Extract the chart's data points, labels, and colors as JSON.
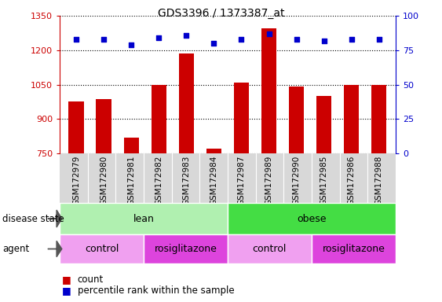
{
  "title": "GDS3396 / 1373387_at",
  "samples": [
    "GSM172979",
    "GSM172980",
    "GSM172981",
    "GSM172982",
    "GSM172983",
    "GSM172984",
    "GSM172987",
    "GSM172989",
    "GSM172990",
    "GSM172985",
    "GSM172986",
    "GSM172988"
  ],
  "counts": [
    975,
    985,
    820,
    1048,
    1185,
    770,
    1060,
    1295,
    1040,
    1000,
    1048,
    1048
  ],
  "percentile_ranks": [
    83,
    83,
    79,
    84,
    86,
    80,
    83,
    87,
    83,
    82,
    83,
    83
  ],
  "ylim_left": [
    750,
    1350
  ],
  "ylim_right": [
    0,
    100
  ],
  "yticks_left": [
    750,
    900,
    1050,
    1200,
    1350
  ],
  "yticks_right": [
    0,
    25,
    50,
    75,
    100
  ],
  "bar_color": "#cc0000",
  "dot_color": "#0000cc",
  "disease_state_groups": [
    {
      "label": "lean",
      "start": 0,
      "end": 6,
      "color": "#b0f0b0"
    },
    {
      "label": "obese",
      "start": 6,
      "end": 12,
      "color": "#44dd44"
    }
  ],
  "agent_groups": [
    {
      "label": "control",
      "start": 0,
      "end": 3,
      "color": "#f0a0f0"
    },
    {
      "label": "rosiglitazone",
      "start": 3,
      "end": 6,
      "color": "#dd44dd"
    },
    {
      "label": "control",
      "start": 6,
      "end": 9,
      "color": "#f0a0f0"
    },
    {
      "label": "rosiglitazone",
      "start": 9,
      "end": 12,
      "color": "#dd44dd"
    }
  ],
  "legend_count_label": "count",
  "legend_pct_label": "percentile rank within the sample",
  "row_labels": [
    "disease state",
    "agent"
  ],
  "tick_bg_color": "#d8d8d8",
  "bar_bottom": 750
}
